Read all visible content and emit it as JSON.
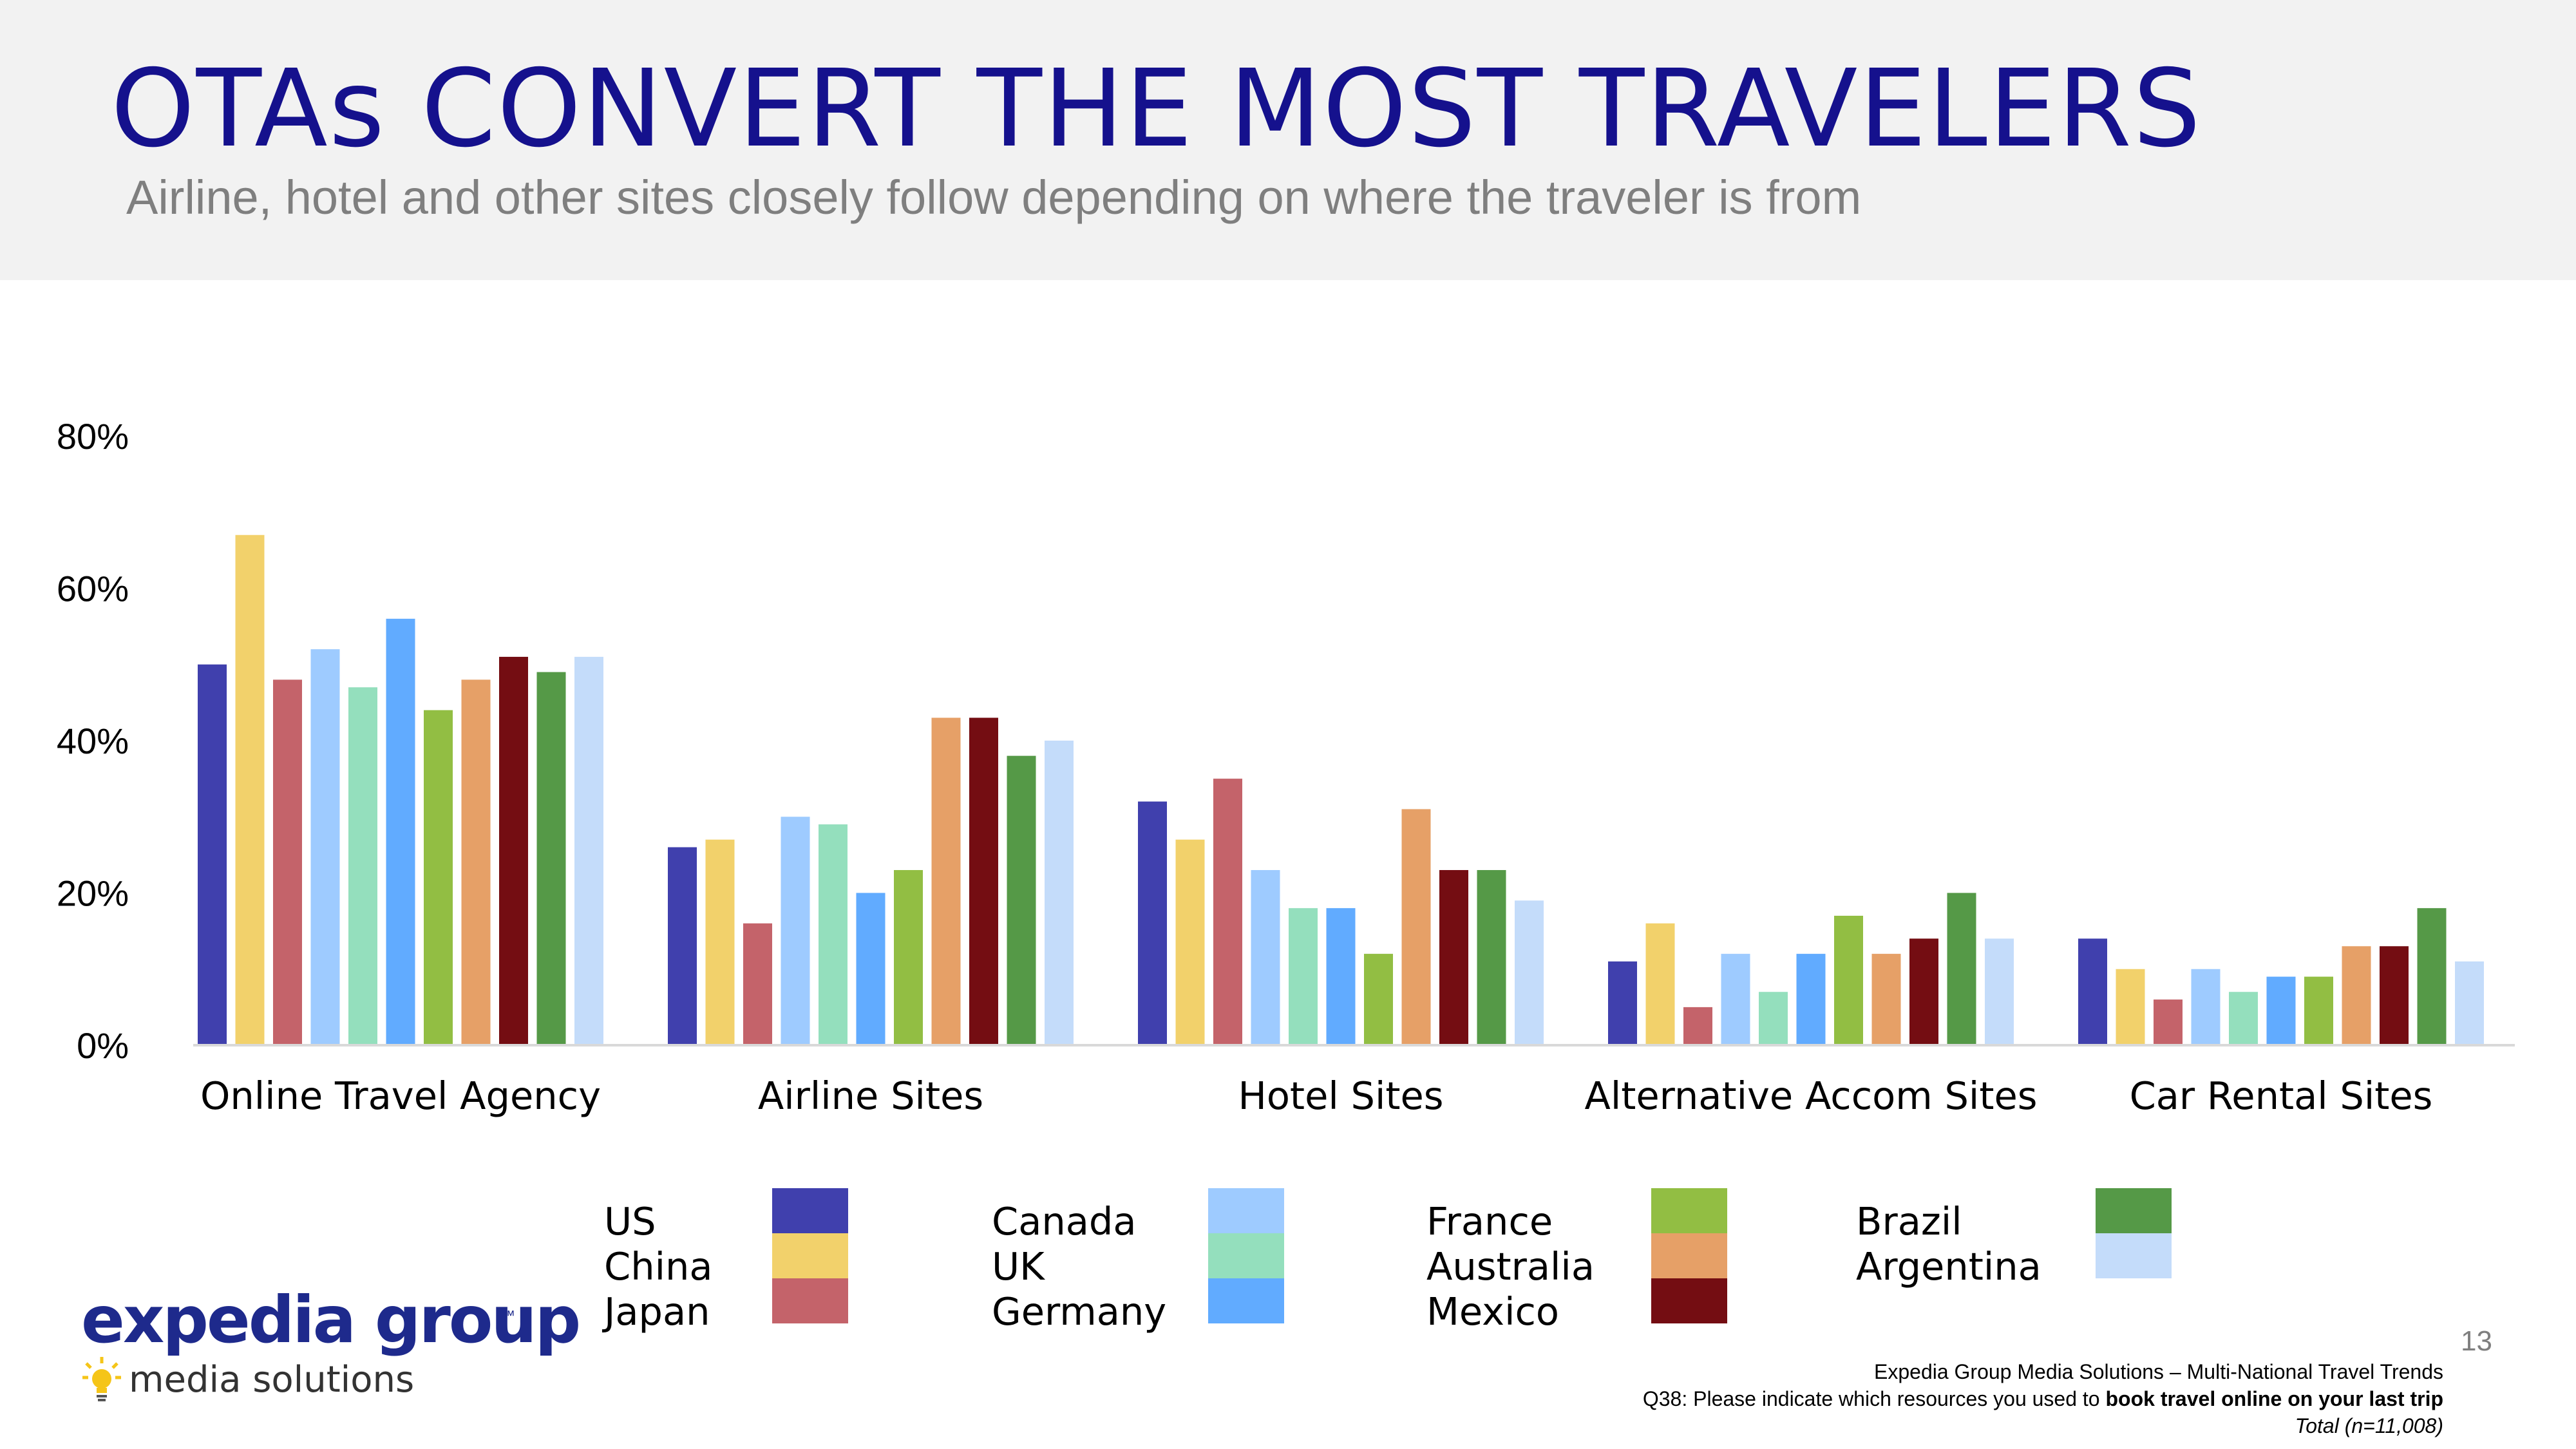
{
  "header": {
    "title": "OTAs CONVERT THE MOST TRAVELERS",
    "subtitle": "Airline, hotel and other sites closely follow depending on where the traveler is from"
  },
  "chart_data": {
    "type": "bar",
    "title": "",
    "xlabel": "",
    "ylabel": "",
    "ylim": [
      0,
      80
    ],
    "yticks": [
      "0%",
      "20%",
      "40%",
      "60%",
      "80%"
    ],
    "grid": false,
    "categories": [
      "Online Travel Agency",
      "Airline Sites",
      "Hotel Sites",
      "Alternative Accom Sites",
      "Car Rental Sites"
    ],
    "series": [
      {
        "name": "US",
        "color": "#4040ad",
        "values": [
          50,
          26,
          32,
          11,
          14
        ]
      },
      {
        "name": "China",
        "color": "#f2d16b",
        "values": [
          67,
          27,
          27,
          16,
          10
        ]
      },
      {
        "name": "Japan",
        "color": "#c4636a",
        "values": [
          48,
          16,
          35,
          5,
          6
        ]
      },
      {
        "name": "Canada",
        "color": "#9ecbff",
        "values": [
          52,
          30,
          23,
          12,
          10
        ]
      },
      {
        "name": "UK",
        "color": "#94dfbd",
        "values": [
          47,
          29,
          18,
          7,
          7
        ]
      },
      {
        "name": "Germany",
        "color": "#61abff",
        "values": [
          56,
          20,
          18,
          12,
          9
        ]
      },
      {
        "name": "France",
        "color": "#92be43",
        "values": [
          44,
          23,
          12,
          17,
          9
        ]
      },
      {
        "name": "Australia",
        "color": "#e6a067",
        "values": [
          48,
          43,
          31,
          12,
          13
        ]
      },
      {
        "name": "Mexico",
        "color": "#740d12",
        "values": [
          51,
          43,
          23,
          14,
          13
        ]
      },
      {
        "name": "Brazil",
        "color": "#559947",
        "values": [
          49,
          38,
          23,
          20,
          18
        ]
      },
      {
        "name": "Argentina",
        "color": "#c4dcfa",
        "values": [
          51,
          40,
          19,
          14,
          11
        ]
      }
    ]
  },
  "legend": {
    "columns": [
      [
        "US",
        "China",
        "Japan"
      ],
      [
        "Canada",
        "UK",
        "Germany"
      ],
      [
        "France",
        "Australia",
        "Mexico"
      ],
      [
        "Brazil",
        "Argentina"
      ]
    ]
  },
  "logo": {
    "wordmark": "expedia group",
    "tm": "™",
    "tagline": "media solutions",
    "icon": "lightbulb-icon"
  },
  "footer": {
    "page_number": "13",
    "source": "Expedia Group Media Solutions – Multi-National Travel Trends",
    "question_prefix": "Q38: Please indicate which resources you used to ",
    "question_bold": "book travel online on your last trip",
    "sample": "Total (n=11,008)"
  }
}
